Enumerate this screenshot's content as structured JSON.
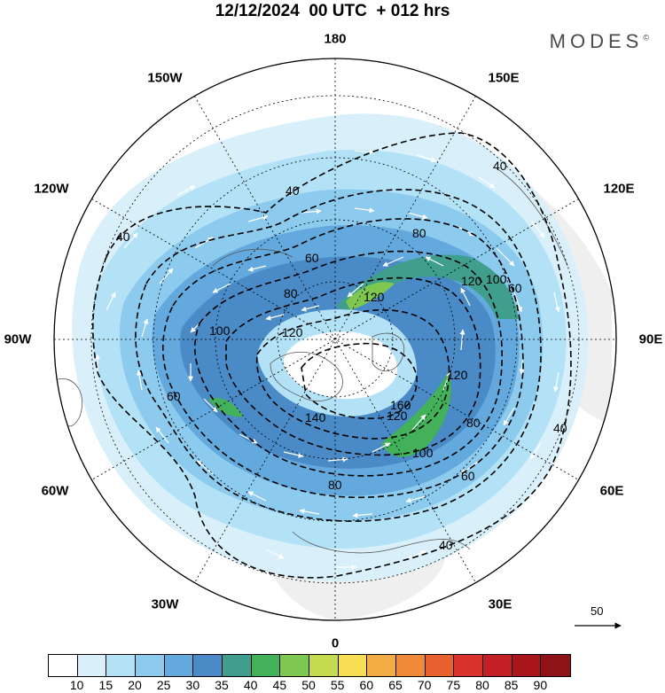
{
  "header": {
    "title": "12/12/2024  00 UTC  + 012 hrs",
    "brand": "MODES",
    "brand_mark": "©"
  },
  "map": {
    "projection": "north-polar-stereographic",
    "longitude_labels": [
      "180",
      "150E",
      "120E",
      "90E",
      "60E",
      "30E",
      "0",
      "30W",
      "60W",
      "90W",
      "120W",
      "150W"
    ],
    "shading_field": "wind speed",
    "contour_labels": [
      "40",
      "40",
      "40",
      "40",
      "40",
      "60",
      "60",
      "60",
      "60",
      "80",
      "80",
      "80",
      "80",
      "100",
      "100",
      "100",
      "120",
      "120",
      "120",
      "120",
      "120",
      "140",
      "160"
    ]
  },
  "reference_vector": {
    "label": "50"
  },
  "colorbar": {
    "colors": [
      "#ffffff",
      "#d9f0fb",
      "#b3e2f7",
      "#8ccaee",
      "#63a9dd",
      "#4a8bc7",
      "#3f9e8c",
      "#43b05a",
      "#7ec852",
      "#c5dc4e",
      "#f7de52",
      "#f4ac45",
      "#ee8a3a",
      "#e8612f",
      "#d9322a",
      "#c41f24",
      "#a9171c",
      "#8e1216"
    ],
    "labels": [
      "10",
      "15",
      "20",
      "25",
      "30",
      "35",
      "40",
      "45",
      "50",
      "55",
      "60",
      "65",
      "70",
      "75",
      "80",
      "85",
      "90"
    ]
  }
}
